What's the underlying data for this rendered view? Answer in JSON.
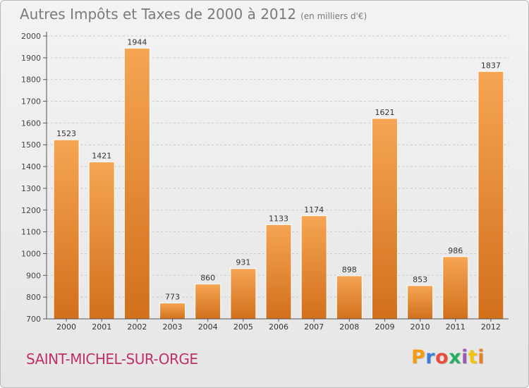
{
  "header": {
    "title": "Autres Impôts et Taxes de 2000 à 2012",
    "unit": "(en milliers d'€)"
  },
  "footer": {
    "commune": "SAINT-MICHEL-SUR-ORGE",
    "brand_letters": [
      "P",
      "r",
      "o",
      "x",
      "i",
      "t",
      "i"
    ],
    "brand_colors": [
      "#f39c12",
      "#3b7dd8",
      "#e74c3c",
      "#27ae60",
      "#9b59b6",
      "#f1c40f",
      "#e67e22"
    ]
  },
  "chart_data": {
    "type": "bar",
    "categories": [
      "2000",
      "2001",
      "2002",
      "2003",
      "2004",
      "2005",
      "2006",
      "2007",
      "2008",
      "2009",
      "2010",
      "2011",
      "2012"
    ],
    "values": [
      1523,
      1421,
      1944,
      773,
      860,
      931,
      1133,
      1174,
      898,
      1621,
      853,
      986,
      1837
    ],
    "ylim": [
      700,
      2000
    ],
    "yticks": [
      700,
      800,
      900,
      1000,
      1100,
      1200,
      1300,
      1400,
      1500,
      1600,
      1700,
      1800,
      1900,
      2000
    ],
    "grid": true,
    "bar_color_top": "#f5a553",
    "bar_color_bottom": "#d2701c"
  }
}
